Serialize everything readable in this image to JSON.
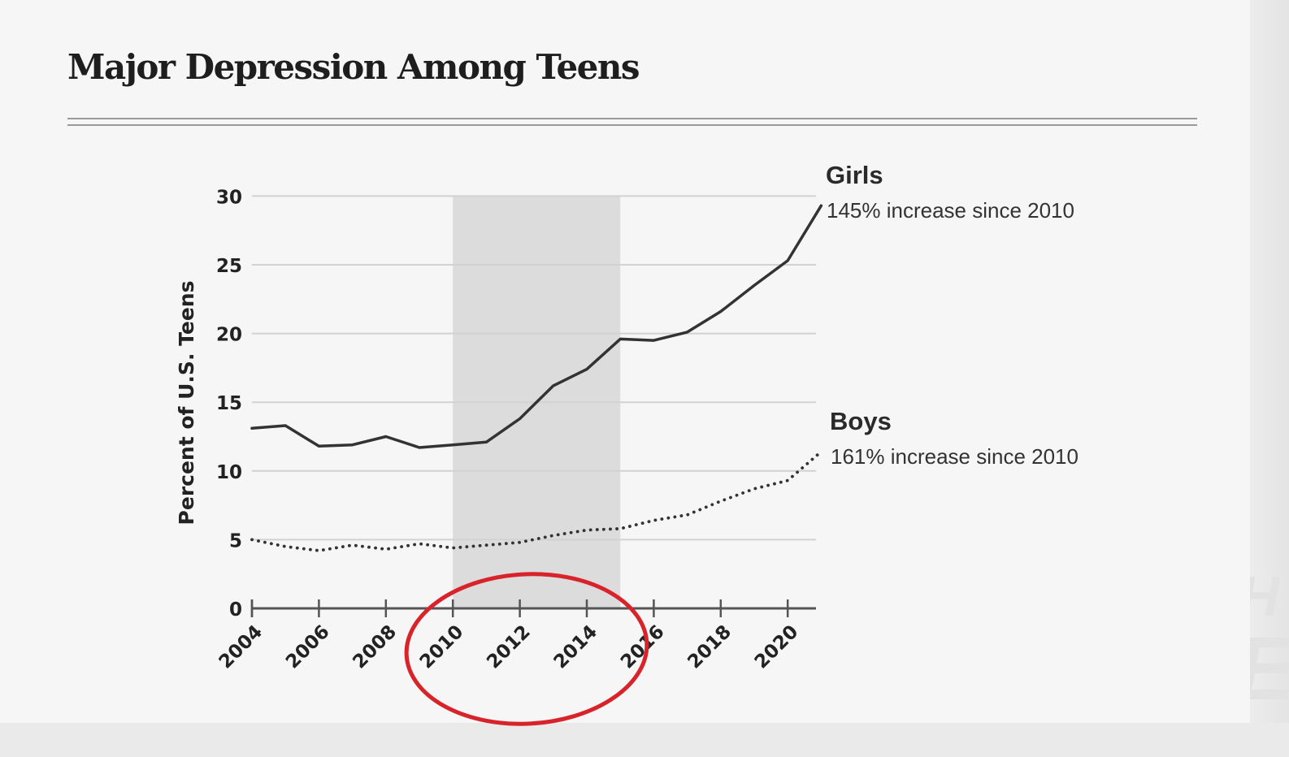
{
  "chart_data": {
    "type": "line",
    "title": "Major Depression Among Teens",
    "ylabel": "Percent of U.S. Teens",
    "xlabel": "",
    "ylim": [
      0,
      30
    ],
    "xlim": [
      2004,
      2021
    ],
    "yticks": [
      0,
      5,
      10,
      15,
      20,
      25,
      30
    ],
    "xticks": [
      2004,
      2006,
      2008,
      2010,
      2012,
      2014,
      2016,
      2018,
      2020
    ],
    "grid": "horizontal",
    "shaded_range": [
      2010,
      2015
    ],
    "x": [
      2004,
      2005,
      2006,
      2007,
      2008,
      2009,
      2010,
      2011,
      2012,
      2013,
      2014,
      2015,
      2016,
      2017,
      2018,
      2019,
      2020,
      2021
    ],
    "series": [
      {
        "name": "Girls",
        "annotation": "145% increase since 2010",
        "style": "solid",
        "color": "#333333",
        "values": [
          13.1,
          13.3,
          11.8,
          11.9,
          12.5,
          11.7,
          11.9,
          12.1,
          13.8,
          16.2,
          17.4,
          19.6,
          19.5,
          20.1,
          21.6,
          23.5,
          25.3,
          29.3
        ]
      },
      {
        "name": "Boys",
        "annotation": "161% increase since 2010",
        "style": "dotted",
        "color": "#333333",
        "values": [
          5.0,
          4.5,
          4.2,
          4.6,
          4.3,
          4.7,
          4.4,
          4.6,
          4.8,
          5.3,
          5.7,
          5.8,
          6.4,
          6.8,
          7.8,
          8.7,
          9.3,
          11.4
        ]
      }
    ],
    "highlight": {
      "shape": "ellipse",
      "color": "#d8232a"
    }
  }
}
